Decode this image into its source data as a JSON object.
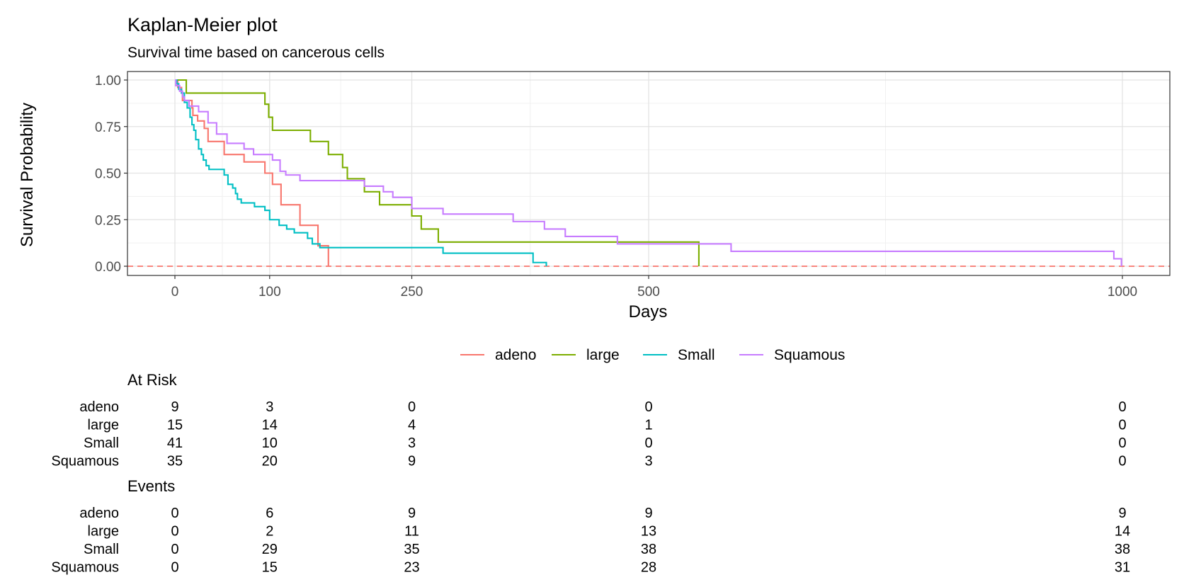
{
  "chart_data": {
    "type": "line",
    "title": "Kaplan-Meier plot",
    "subtitle": "Survival time based on cancerous cells",
    "xlabel": "Days",
    "ylabel": "Survival Probability",
    "xlim": [
      0,
      1000
    ],
    "ylim": [
      0,
      1
    ],
    "x_ticks": [
      0,
      100,
      250,
      500,
      1000
    ],
    "y_ticks": [
      "0.00",
      "0.25",
      "0.50",
      "0.75",
      "1.00"
    ],
    "grid": true,
    "legend_position": "bottom",
    "reference_line": {
      "y": 0,
      "style": "dashed",
      "color": "#F8766D"
    },
    "series": [
      {
        "name": "adeno",
        "color": "#F8766D",
        "x": [
          0,
          3,
          7,
          8,
          18,
          19,
          24,
          31,
          35,
          51,
          52,
          73,
          80,
          87,
          92,
          95,
          103,
          112,
          117,
          132,
          140,
          151,
          153,
          156,
          162
        ],
        "y": [
          1.0,
          0.96,
          0.93,
          0.89,
          0.85,
          0.81,
          0.78,
          0.74,
          0.67,
          0.67,
          0.6,
          0.56,
          0.56,
          0.56,
          0.56,
          0.5,
          0.44,
          0.33,
          0.33,
          0.22,
          0.22,
          0.11,
          0.11,
          0.11,
          0.0
        ]
      },
      {
        "name": "large",
        "color": "#7CAE00",
        "x": [
          0,
          12,
          95,
          99,
          103,
          105,
          143,
          162,
          177,
          182,
          200,
          216,
          250,
          260,
          278,
          553
        ],
        "y": [
          1.0,
          0.93,
          0.87,
          0.8,
          0.73,
          0.73,
          0.67,
          0.6,
          0.53,
          0.47,
          0.4,
          0.33,
          0.27,
          0.2,
          0.13,
          0.0
        ]
      },
      {
        "name": "Small",
        "color": "#00BFC4",
        "x": [
          0,
          2,
          4,
          7,
          10,
          13,
          16,
          18,
          20,
          22,
          25,
          28,
          30,
          33,
          36,
          40,
          52,
          56,
          61,
          64,
          66,
          70,
          80,
          84,
          95,
          100,
          110,
          118,
          126,
          140,
          145,
          153,
          193,
          228,
          263,
          283,
          292,
          357,
          378,
          392
        ],
        "y": [
          1.0,
          0.98,
          0.95,
          0.93,
          0.88,
          0.85,
          0.8,
          0.76,
          0.73,
          0.68,
          0.63,
          0.6,
          0.57,
          0.54,
          0.52,
          0.52,
          0.49,
          0.44,
          0.42,
          0.39,
          0.36,
          0.34,
          0.34,
          0.32,
          0.3,
          0.25,
          0.22,
          0.2,
          0.18,
          0.15,
          0.12,
          0.1,
          0.1,
          0.1,
          0.1,
          0.07,
          0.07,
          0.07,
          0.02,
          0.0
        ]
      },
      {
        "name": "Squamous",
        "color": "#C77CFF",
        "x": [
          0,
          1,
          5,
          8,
          10,
          15,
          25,
          35,
          44,
          55,
          73,
          83,
          95,
          103,
          111,
          117,
          132,
          162,
          200,
          220,
          230,
          250,
          283,
          357,
          390,
          412,
          467,
          587,
          991,
          999
        ],
        "y": [
          1.0,
          0.97,
          0.94,
          0.91,
          0.89,
          0.86,
          0.83,
          0.77,
          0.71,
          0.66,
          0.63,
          0.6,
          0.6,
          0.57,
          0.51,
          0.49,
          0.46,
          0.46,
          0.43,
          0.4,
          0.37,
          0.31,
          0.28,
          0.24,
          0.2,
          0.16,
          0.12,
          0.08,
          0.04,
          0.0
        ]
      }
    ]
  },
  "risk_table": {
    "title": "At Risk",
    "columns": [
      "0",
      "100",
      "250",
      "500",
      "1000"
    ],
    "rows": [
      {
        "label": "adeno",
        "values": [
          "9",
          "3",
          "0",
          "0",
          "0"
        ]
      },
      {
        "label": "large",
        "values": [
          "15",
          "14",
          "4",
          "1",
          "0"
        ]
      },
      {
        "label": "Small",
        "values": [
          "41",
          "10",
          "3",
          "0",
          "0"
        ]
      },
      {
        "label": "Squamous",
        "values": [
          "35",
          "20",
          "9",
          "3",
          "0"
        ]
      }
    ]
  },
  "events_table": {
    "title": "Events",
    "columns": [
      "0",
      "100",
      "250",
      "500",
      "1000"
    ],
    "rows": [
      {
        "label": "adeno",
        "values": [
          "0",
          "6",
          "9",
          "9",
          "9"
        ]
      },
      {
        "label": "large",
        "values": [
          "0",
          "2",
          "11",
          "13",
          "14"
        ]
      },
      {
        "label": "Small",
        "values": [
          "0",
          "29",
          "35",
          "38",
          "38"
        ]
      },
      {
        "label": "Squamous",
        "values": [
          "0",
          "15",
          "23",
          "28",
          "31"
        ]
      }
    ]
  }
}
